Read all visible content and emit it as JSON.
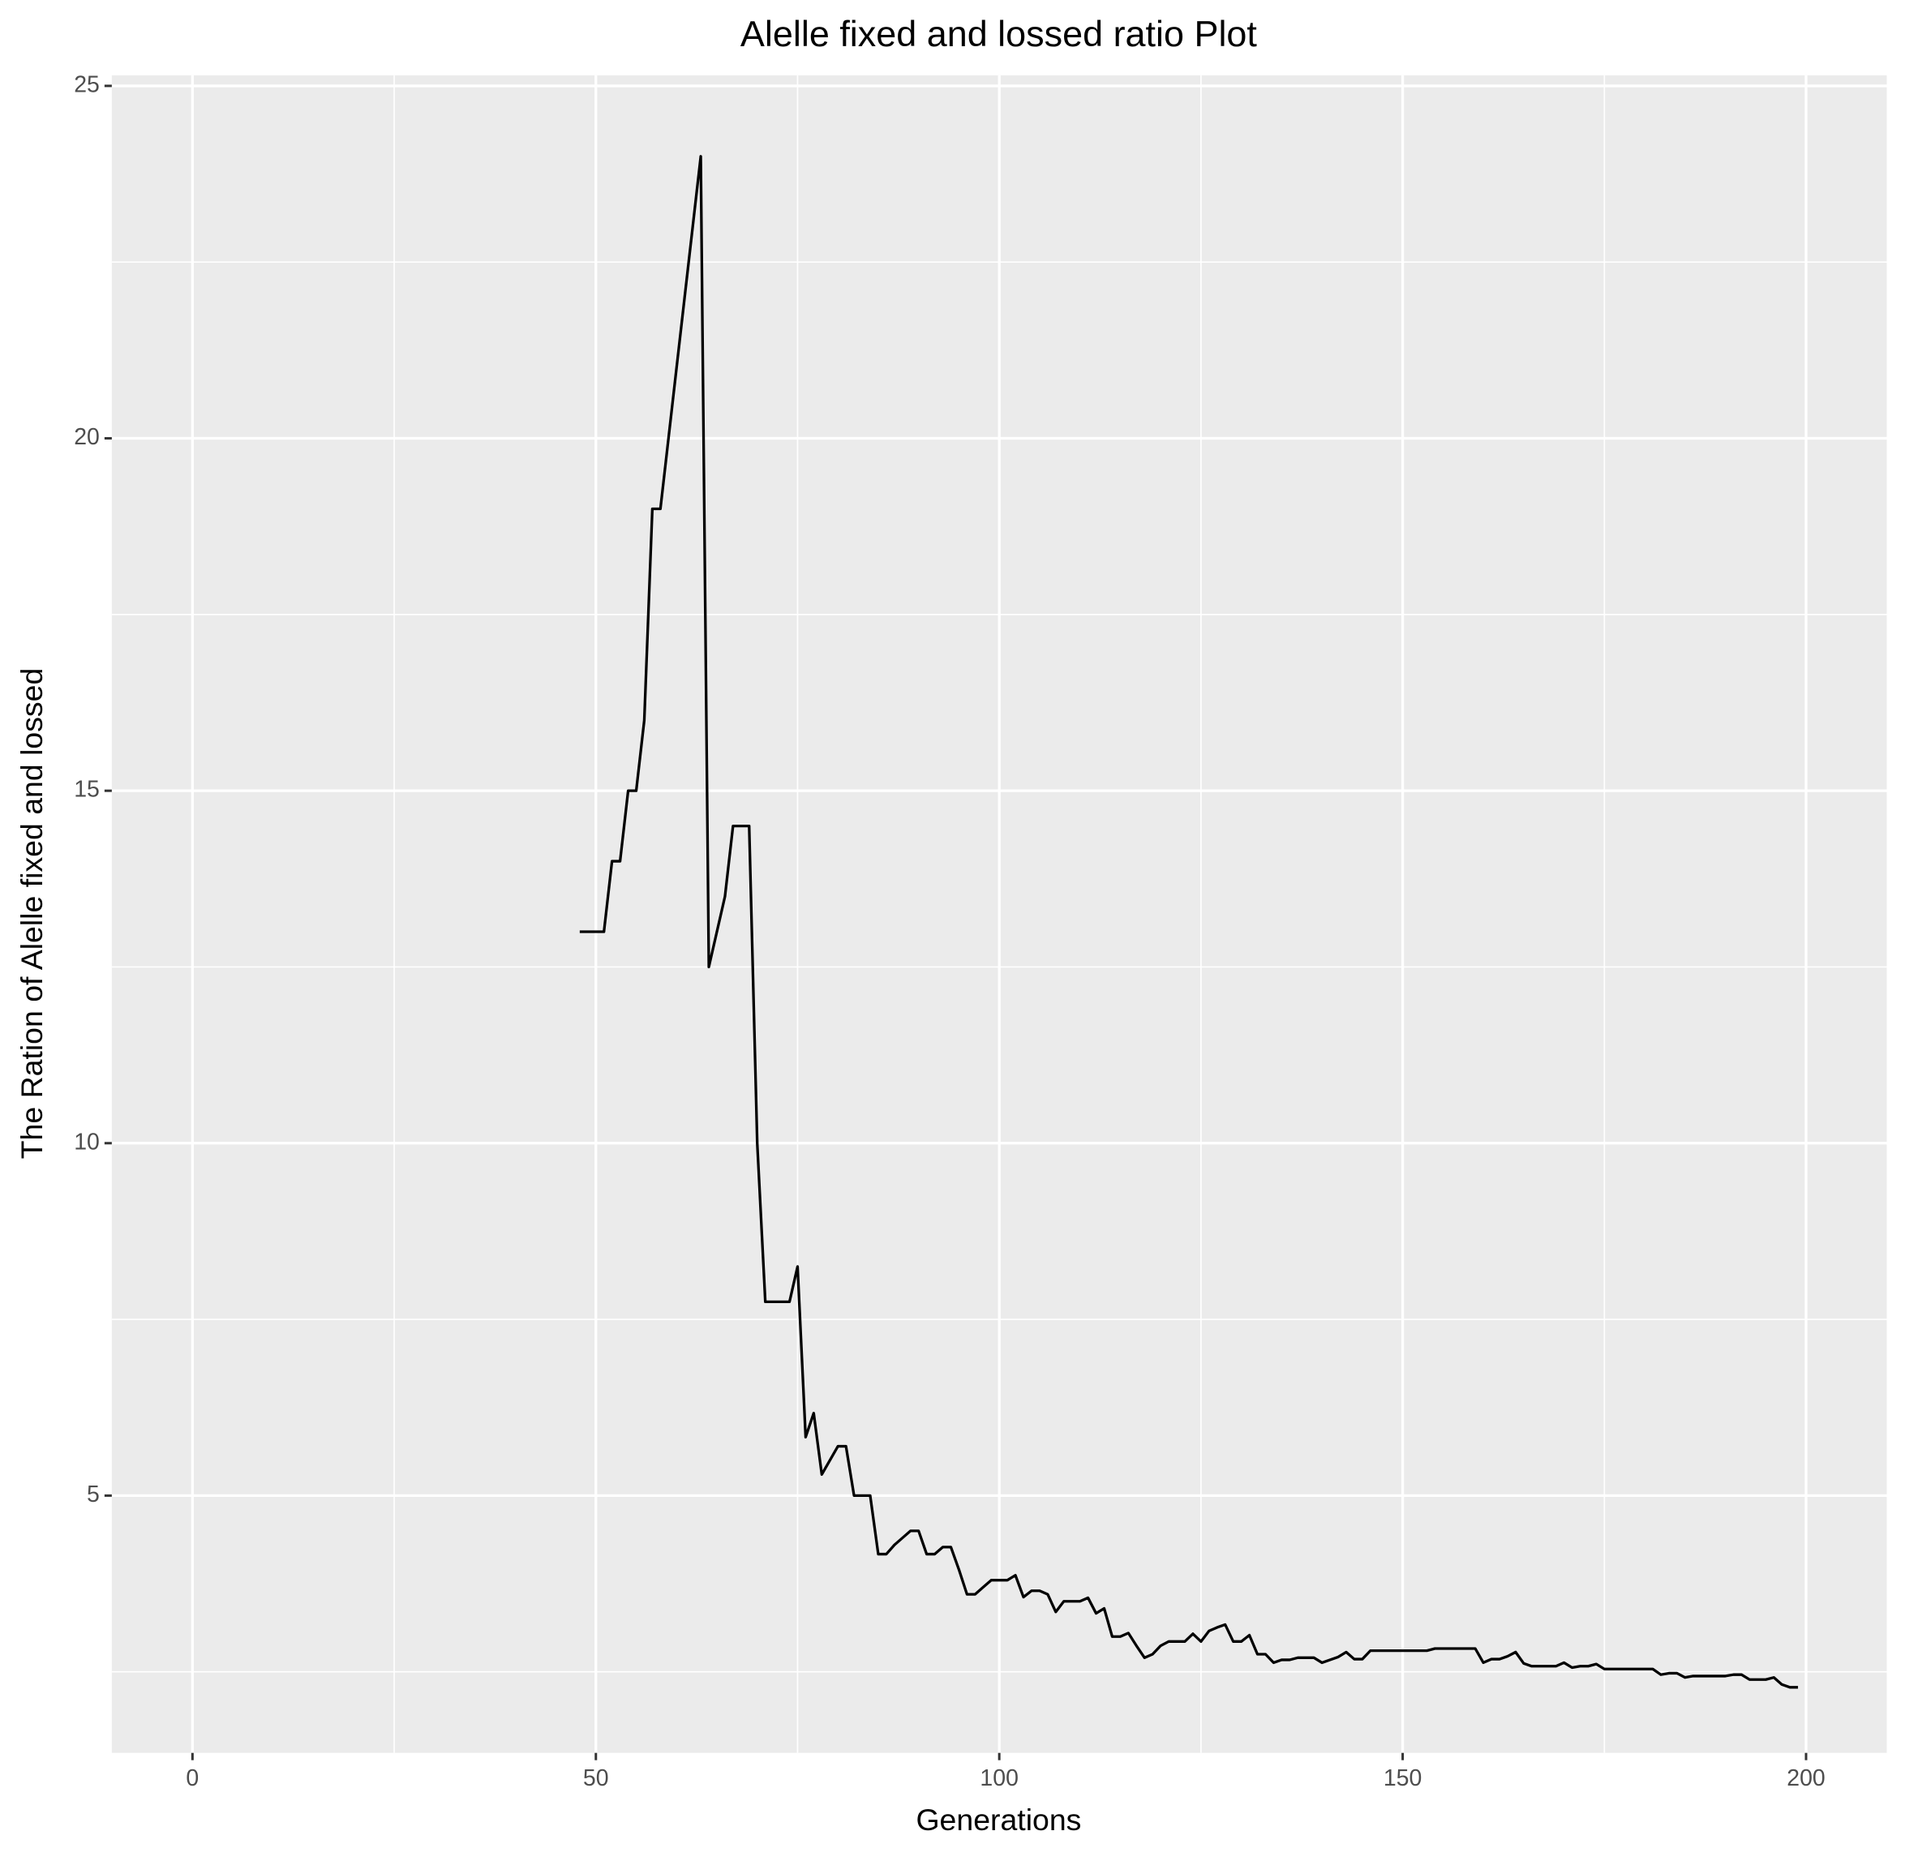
{
  "chart_data": {
    "type": "line",
    "title": "Alelle fixed and lossed ratio Plot",
    "x_label": "Generations",
    "y_label": "The Ration of Alelle fixed and lossed",
    "x": [
      48,
      49,
      50,
      51,
      52,
      53,
      54,
      55,
      56,
      57,
      58,
      59,
      60,
      61,
      62,
      63,
      64,
      65,
      66,
      67,
      68,
      69,
      70,
      71,
      72,
      73,
      74,
      75,
      76,
      77,
      78,
      79,
      80,
      81,
      82,
      83,
      84,
      85,
      86,
      87,
      88,
      89,
      90,
      91,
      92,
      93,
      94,
      95,
      96,
      97,
      98,
      99,
      100,
      101,
      102,
      103,
      104,
      105,
      106,
      107,
      108,
      109,
      110,
      111,
      112,
      113,
      114,
      115,
      116,
      117,
      118,
      119,
      120,
      121,
      122,
      123,
      124,
      125,
      126,
      127,
      128,
      129,
      130,
      131,
      132,
      133,
      134,
      135,
      136,
      137,
      138,
      139,
      140,
      141,
      142,
      143,
      144,
      145,
      146,
      147,
      148,
      149,
      150,
      151,
      152,
      153,
      154,
      155,
      156,
      157,
      158,
      159,
      160,
      161,
      162,
      163,
      164,
      165,
      166,
      167,
      168,
      169,
      170,
      171,
      172,
      173,
      174,
      175,
      176,
      177,
      178,
      179,
      180,
      181,
      182,
      183,
      184,
      185,
      186,
      187,
      188,
      189,
      190,
      191,
      192,
      193,
      194,
      195,
      196,
      197,
      198,
      199
    ],
    "series": [
      {
        "color": "#000000",
        "values": [
          13,
          13,
          13,
          13,
          14,
          14,
          15,
          15,
          16,
          19,
          19,
          20,
          21,
          22,
          23,
          24,
          12.5,
          13,
          13.5,
          14.5,
          14.5,
          14.5,
          10,
          7.75,
          7.75,
          7.75,
          7.75,
          8.25,
          5.83,
          6.17,
          5.3,
          5.5,
          5.7,
          5.7,
          5,
          5,
          5,
          4.17,
          4.17,
          4.3,
          4.4,
          4.5,
          4.5,
          4.17,
          4.17,
          4.27,
          4.27,
          3.95,
          3.6,
          3.6,
          3.7,
          3.8,
          3.8,
          3.8,
          3.87,
          3.56,
          3.65,
          3.65,
          3.6,
          3.35,
          3.5,
          3.5,
          3.5,
          3.55,
          3.33,
          3.4,
          3.0,
          3.0,
          3.05,
          2.87,
          2.7,
          2.75,
          2.87,
          2.93,
          2.93,
          2.93,
          3.04,
          2.93,
          3.08,
          3.13,
          3.17,
          2.93,
          2.93,
          3.02,
          2.75,
          2.75,
          2.63,
          2.67,
          2.67,
          2.7,
          2.7,
          2.7,
          2.63,
          2.67,
          2.71,
          2.78,
          2.68,
          2.68,
          2.8,
          2.8,
          2.8,
          2.8,
          2.8,
          2.8,
          2.8,
          2.8,
          2.83,
          2.83,
          2.83,
          2.83,
          2.83,
          2.83,
          2.63,
          2.68,
          2.68,
          2.72,
          2.78,
          2.62,
          2.58,
          2.58,
          2.58,
          2.58,
          2.63,
          2.56,
          2.58,
          2.58,
          2.61,
          2.54,
          2.54,
          2.54,
          2.54,
          2.54,
          2.54,
          2.54,
          2.46,
          2.48,
          2.48,
          2.42,
          2.44,
          2.44,
          2.44,
          2.44,
          2.44,
          2.46,
          2.46,
          2.39,
          2.39,
          2.39,
          2.42,
          2.32,
          2.28,
          2.28
        ]
      }
    ],
    "xlim": [
      -10,
      210
    ],
    "ylim": [
      1.35,
      25.15
    ],
    "xticks": [
      0,
      50,
      100,
      150,
      200
    ],
    "yticks": [
      5,
      10,
      15,
      20,
      25
    ],
    "xminor": [
      25,
      75,
      125,
      175
    ],
    "yminor": [
      2.5,
      7.5,
      12.5,
      17.5,
      22.5
    ],
    "grid": true
  }
}
